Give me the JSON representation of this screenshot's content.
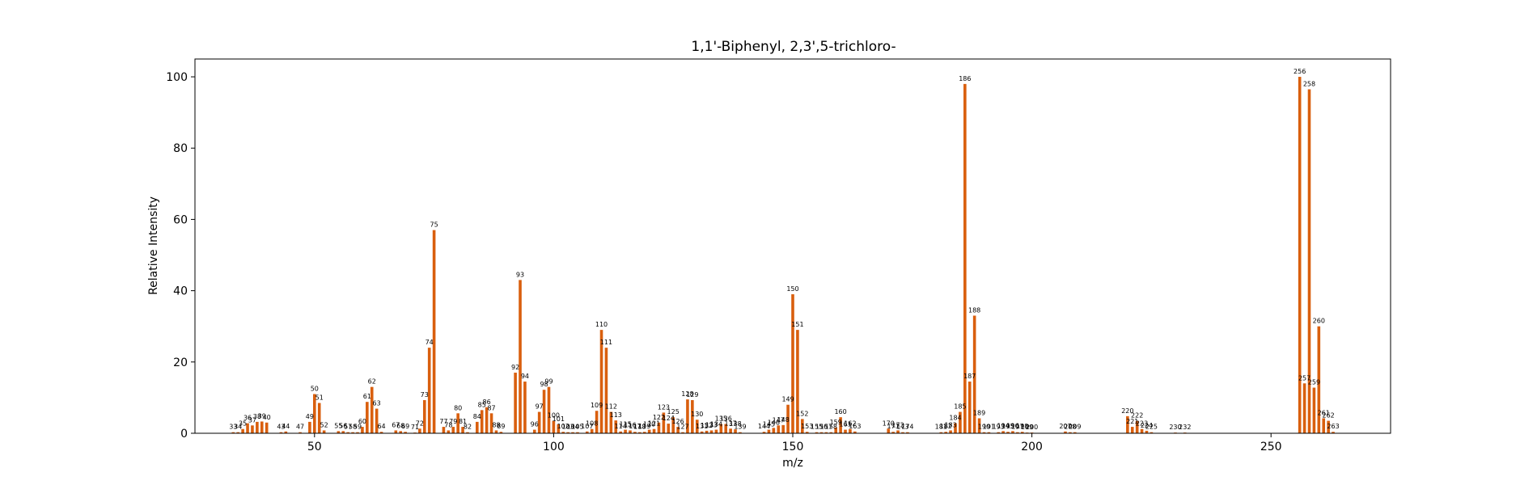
{
  "chart_data": {
    "type": "bar",
    "title": "1,1'-Biphenyl, 2,3',5-trichloro-",
    "xlabel": "m/z",
    "ylabel": "Relative Intensity",
    "xlim": [
      25,
      275
    ],
    "ylim": [
      0,
      105
    ],
    "xticks": [
      50,
      100,
      150,
      200,
      250
    ],
    "yticks": [
      0,
      20,
      40,
      60,
      80,
      100
    ],
    "bar_color": "#d95f0e",
    "grid": false,
    "peaks": [
      {
        "mz": 33,
        "intensity": 0.3
      },
      {
        "mz": 34,
        "intensity": 0.3
      },
      {
        "mz": 35,
        "intensity": 1.2
      },
      {
        "mz": 36,
        "intensity": 2.8
      },
      {
        "mz": 37,
        "intensity": 2.2
      },
      {
        "mz": 38,
        "intensity": 3.2
      },
      {
        "mz": 39,
        "intensity": 3.3
      },
      {
        "mz": 40,
        "intensity": 3.0
      },
      {
        "mz": 43,
        "intensity": 0.3
      },
      {
        "mz": 44,
        "intensity": 0.5
      },
      {
        "mz": 47,
        "intensity": 0.3
      },
      {
        "mz": 49,
        "intensity": 3.2
      },
      {
        "mz": 50,
        "intensity": 11.0
      },
      {
        "mz": 51,
        "intensity": 8.5
      },
      {
        "mz": 52,
        "intensity": 0.8
      },
      {
        "mz": 55,
        "intensity": 0.6
      },
      {
        "mz": 56,
        "intensity": 0.6
      },
      {
        "mz": 57,
        "intensity": 0.3
      },
      {
        "mz": 58,
        "intensity": 0.3
      },
      {
        "mz": 59,
        "intensity": 0.3
      },
      {
        "mz": 60,
        "intensity": 1.8
      },
      {
        "mz": 61,
        "intensity": 8.8
      },
      {
        "mz": 62,
        "intensity": 13.0
      },
      {
        "mz": 63,
        "intensity": 6.9
      },
      {
        "mz": 64,
        "intensity": 0.4
      },
      {
        "mz": 67,
        "intensity": 0.8
      },
      {
        "mz": 68,
        "intensity": 0.6
      },
      {
        "mz": 69,
        "intensity": 0.4
      },
      {
        "mz": 71,
        "intensity": 0.2
      },
      {
        "mz": 72,
        "intensity": 1.3
      },
      {
        "mz": 73,
        "intensity": 9.3
      },
      {
        "mz": 74,
        "intensity": 24.0
      },
      {
        "mz": 75,
        "intensity": 57.0
      },
      {
        "mz": 77,
        "intensity": 1.8
      },
      {
        "mz": 78,
        "intensity": 0.8
      },
      {
        "mz": 79,
        "intensity": 1.8
      },
      {
        "mz": 80,
        "intensity": 5.6
      },
      {
        "mz": 81,
        "intensity": 1.8
      },
      {
        "mz": 82,
        "intensity": 0.3
      },
      {
        "mz": 84,
        "intensity": 3.2
      },
      {
        "mz": 85,
        "intensity": 6.5
      },
      {
        "mz": 86,
        "intensity": 7.3
      },
      {
        "mz": 87,
        "intensity": 5.6
      },
      {
        "mz": 88,
        "intensity": 0.8
      },
      {
        "mz": 89,
        "intensity": 0.4
      },
      {
        "mz": 92,
        "intensity": 17.0
      },
      {
        "mz": 93,
        "intensity": 43.0
      },
      {
        "mz": 94,
        "intensity": 14.5
      },
      {
        "mz": 96,
        "intensity": 1.0
      },
      {
        "mz": 97,
        "intensity": 6.0
      },
      {
        "mz": 98,
        "intensity": 12.2
      },
      {
        "mz": 99,
        "intensity": 13.0
      },
      {
        "mz": 100,
        "intensity": 3.5
      },
      {
        "mz": 101,
        "intensity": 2.5
      },
      {
        "mz": 102,
        "intensity": 0.4
      },
      {
        "mz": 103,
        "intensity": 0.3
      },
      {
        "mz": 104,
        "intensity": 0.3
      },
      {
        "mz": 105,
        "intensity": 0.3
      },
      {
        "mz": 107,
        "intensity": 0.5
      },
      {
        "mz": 108,
        "intensity": 1.2
      },
      {
        "mz": 109,
        "intensity": 6.3
      },
      {
        "mz": 110,
        "intensity": 29.0
      },
      {
        "mz": 111,
        "intensity": 24.0
      },
      {
        "mz": 112,
        "intensity": 6.0
      },
      {
        "mz": 113,
        "intensity": 3.6
      },
      {
        "mz": 114,
        "intensity": 0.5
      },
      {
        "mz": 115,
        "intensity": 1.0
      },
      {
        "mz": 116,
        "intensity": 0.8
      },
      {
        "mz": 117,
        "intensity": 0.4
      },
      {
        "mz": 118,
        "intensity": 0.3
      },
      {
        "mz": 119,
        "intensity": 0.4
      },
      {
        "mz": 120,
        "intensity": 1.0
      },
      {
        "mz": 121,
        "intensity": 1.2
      },
      {
        "mz": 122,
        "intensity": 3.0
      },
      {
        "mz": 123,
        "intensity": 5.8
      },
      {
        "mz": 124,
        "intensity": 2.7
      },
      {
        "mz": 125,
        "intensity": 4.5
      },
      {
        "mz": 126,
        "intensity": 1.8
      },
      {
        "mz": 127,
        "intensity": 0.3
      },
      {
        "mz": 128,
        "intensity": 9.5
      },
      {
        "mz": 129,
        "intensity": 9.3
      },
      {
        "mz": 130,
        "intensity": 3.8
      },
      {
        "mz": 131,
        "intensity": 0.5
      },
      {
        "mz": 132,
        "intensity": 0.7
      },
      {
        "mz": 133,
        "intensity": 0.8
      },
      {
        "mz": 134,
        "intensity": 1.0
      },
      {
        "mz": 135,
        "intensity": 2.6
      },
      {
        "mz": 136,
        "intensity": 2.6
      },
      {
        "mz": 137,
        "intensity": 1.3
      },
      {
        "mz": 138,
        "intensity": 1.1
      },
      {
        "mz": 139,
        "intensity": 0.3
      },
      {
        "mz": 144,
        "intensity": 0.4
      },
      {
        "mz": 145,
        "intensity": 1.0
      },
      {
        "mz": 146,
        "intensity": 1.5
      },
      {
        "mz": 147,
        "intensity": 2.2
      },
      {
        "mz": 148,
        "intensity": 2.3
      },
      {
        "mz": 149,
        "intensity": 8.0
      },
      {
        "mz": 150,
        "intensity": 39.0
      },
      {
        "mz": 151,
        "intensity": 29.0
      },
      {
        "mz": 152,
        "intensity": 4.0
      },
      {
        "mz": 153,
        "intensity": 0.4
      },
      {
        "mz": 155,
        "intensity": 0.3
      },
      {
        "mz": 156,
        "intensity": 0.3
      },
      {
        "mz": 157,
        "intensity": 0.3
      },
      {
        "mz": 158,
        "intensity": 0.3
      },
      {
        "mz": 159,
        "intensity": 1.6
      },
      {
        "mz": 160,
        "intensity": 4.5
      },
      {
        "mz": 161,
        "intensity": 1.0
      },
      {
        "mz": 162,
        "intensity": 1.2
      },
      {
        "mz": 163,
        "intensity": 0.5
      },
      {
        "mz": 170,
        "intensity": 1.3
      },
      {
        "mz": 171,
        "intensity": 0.4
      },
      {
        "mz": 172,
        "intensity": 0.8
      },
      {
        "mz": 173,
        "intensity": 0.3
      },
      {
        "mz": 174,
        "intensity": 0.3
      },
      {
        "mz": 181,
        "intensity": 0.3
      },
      {
        "mz": 182,
        "intensity": 0.4
      },
      {
        "mz": 183,
        "intensity": 0.8
      },
      {
        "mz": 184,
        "intensity": 2.8
      },
      {
        "mz": 185,
        "intensity": 6.0
      },
      {
        "mz": 186,
        "intensity": 98.0
      },
      {
        "mz": 187,
        "intensity": 14.5
      },
      {
        "mz": 188,
        "intensity": 33.0
      },
      {
        "mz": 189,
        "intensity": 4.2
      },
      {
        "mz": 190,
        "intensity": 0.3
      },
      {
        "mz": 191,
        "intensity": 0.3
      },
      {
        "mz": 193,
        "intensity": 0.3
      },
      {
        "mz": 194,
        "intensity": 0.6
      },
      {
        "mz": 195,
        "intensity": 0.4
      },
      {
        "mz": 196,
        "intensity": 0.6
      },
      {
        "mz": 197,
        "intensity": 0.3
      },
      {
        "mz": 198,
        "intensity": 0.4
      },
      {
        "mz": 199,
        "intensity": 0.2
      },
      {
        "mz": 200,
        "intensity": 0.2
      },
      {
        "mz": 207,
        "intensity": 0.5
      },
      {
        "mz": 208,
        "intensity": 0.3
      },
      {
        "mz": 209,
        "intensity": 0.3
      },
      {
        "mz": 220,
        "intensity": 4.8
      },
      {
        "mz": 221,
        "intensity": 1.8
      },
      {
        "mz": 222,
        "intensity": 3.5
      },
      {
        "mz": 223,
        "intensity": 1.2
      },
      {
        "mz": 224,
        "intensity": 0.7
      },
      {
        "mz": 225,
        "intensity": 0.3
      },
      {
        "mz": 230,
        "intensity": 0.2
      },
      {
        "mz": 232,
        "intensity": 0.2
      },
      {
        "mz": 256,
        "intensity": 100.0
      },
      {
        "mz": 257,
        "intensity": 14.0
      },
      {
        "mz": 258,
        "intensity": 96.5
      },
      {
        "mz": 259,
        "intensity": 12.8
      },
      {
        "mz": 260,
        "intensity": 30.0
      },
      {
        "mz": 261,
        "intensity": 4.2
      },
      {
        "mz": 262,
        "intensity": 3.5
      },
      {
        "mz": 263,
        "intensity": 0.4
      }
    ]
  }
}
